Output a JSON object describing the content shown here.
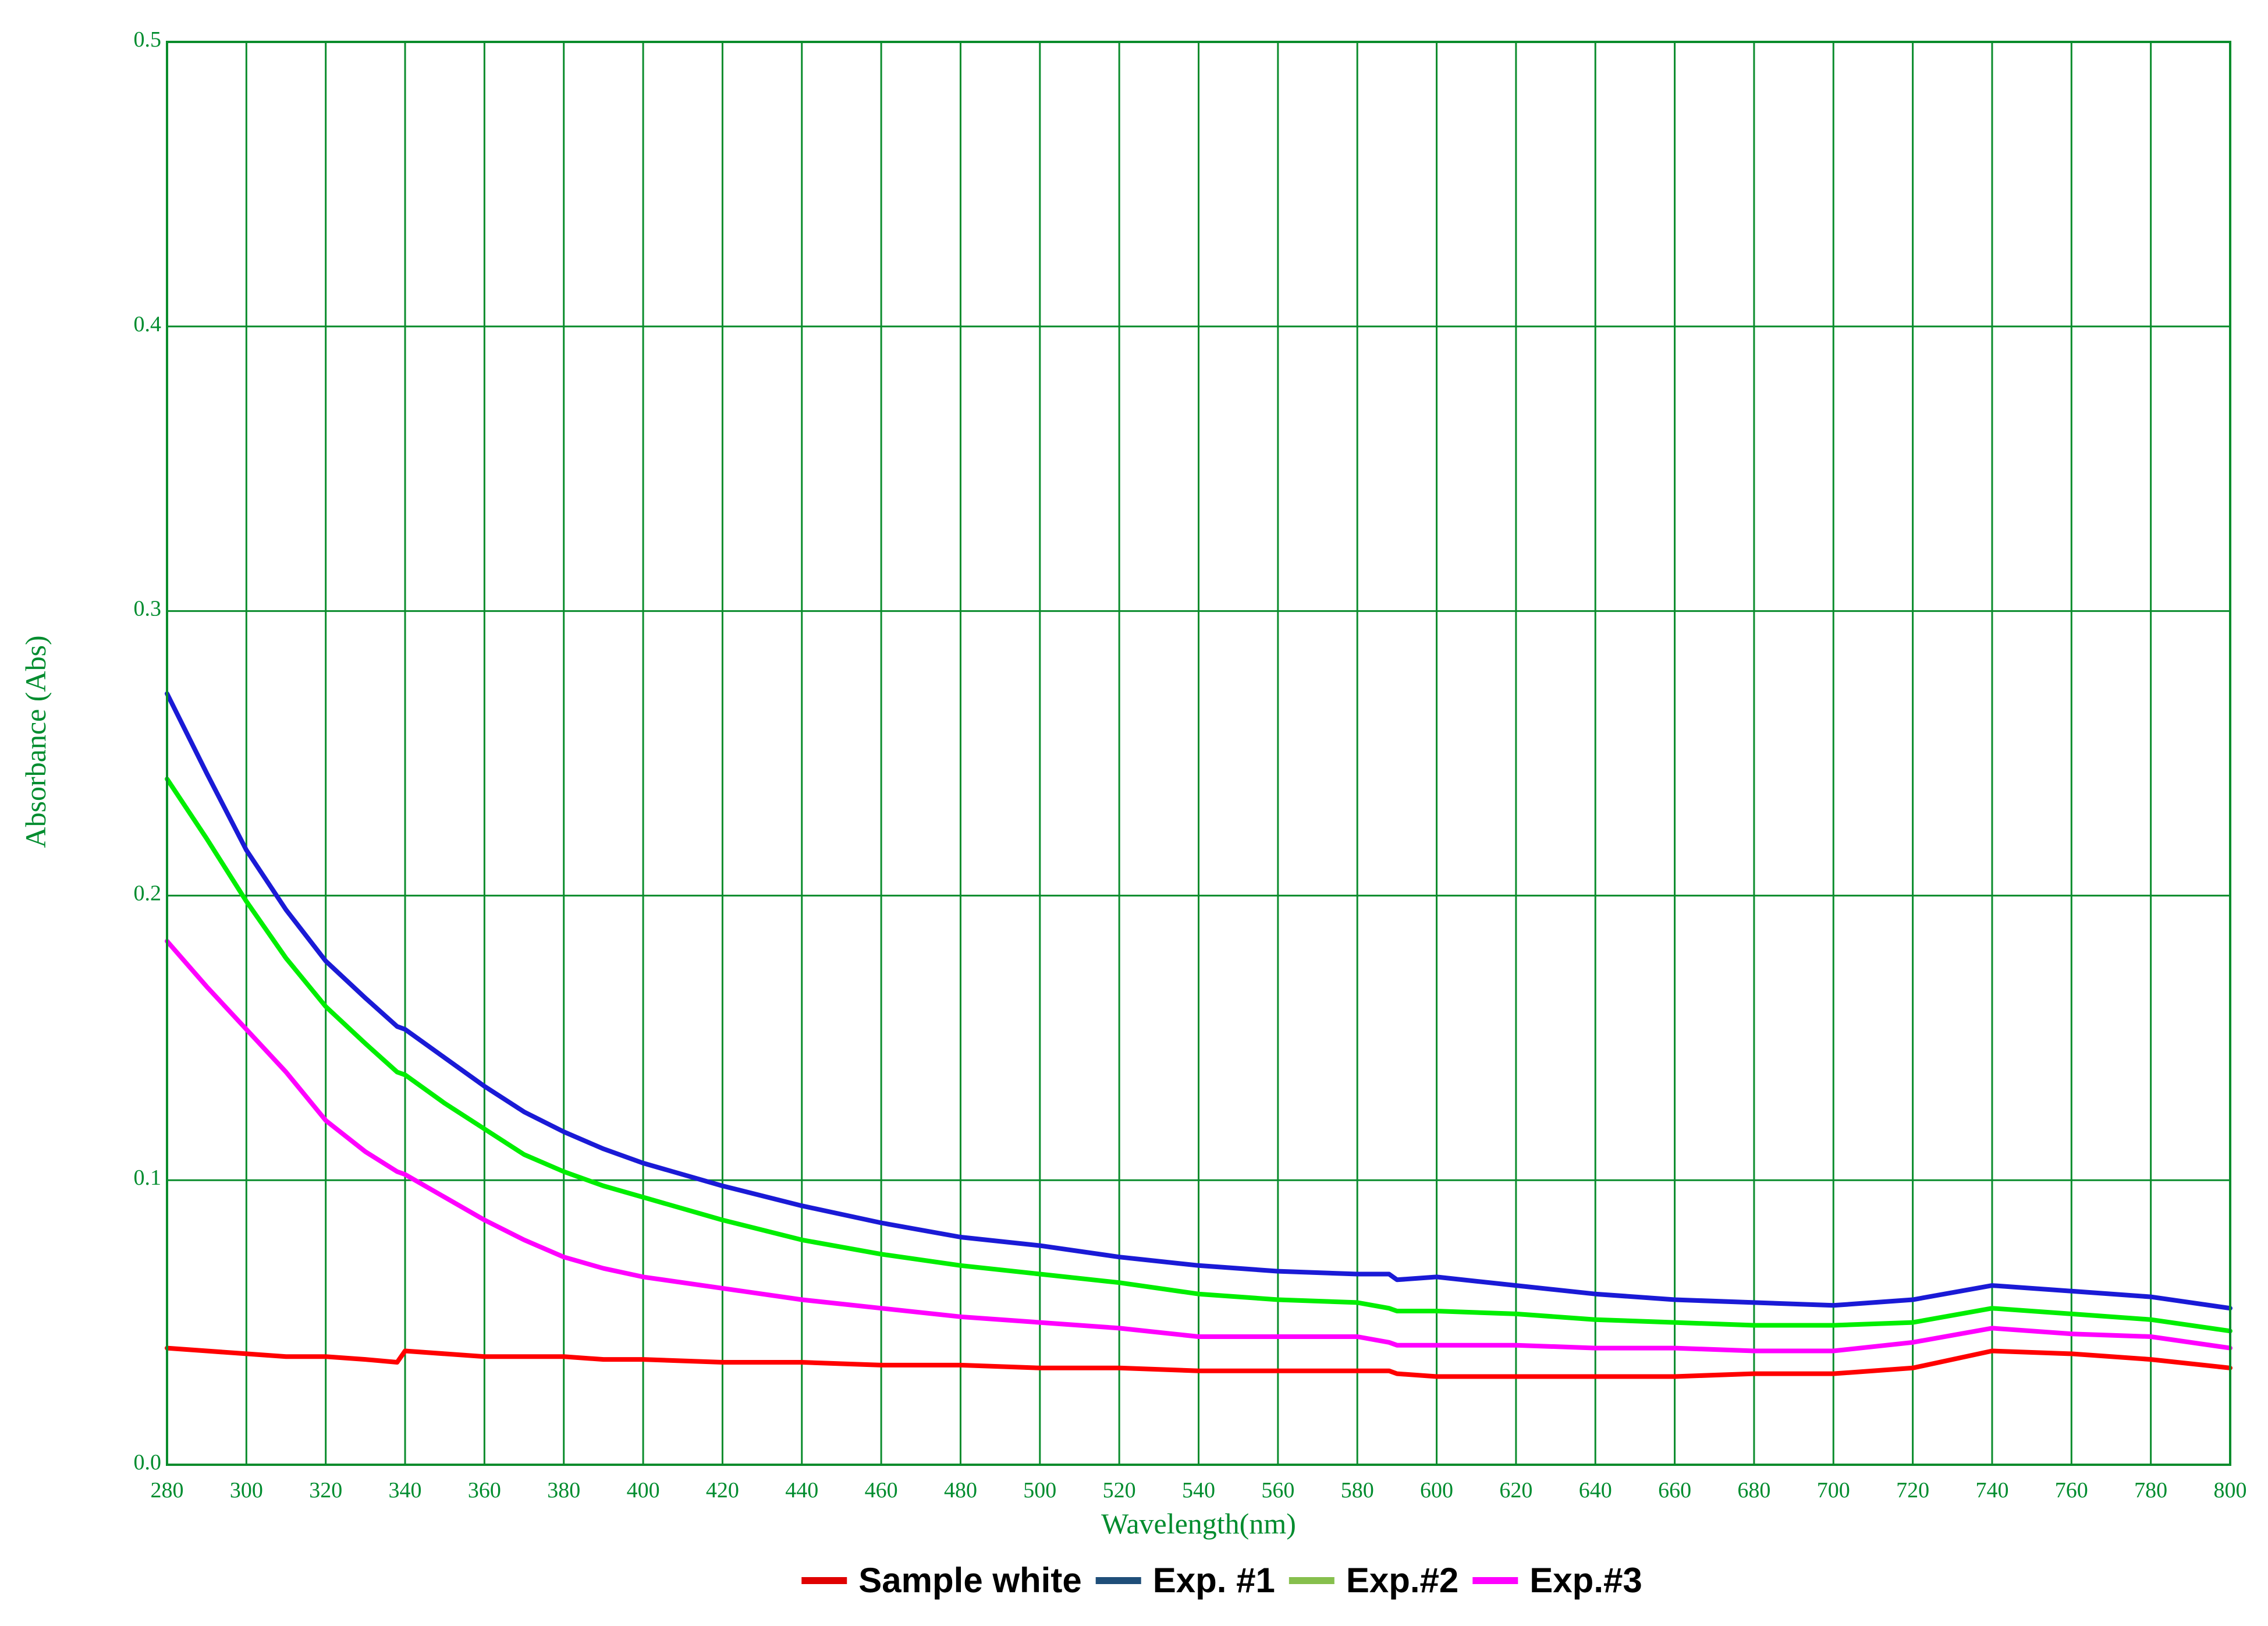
{
  "chart_data": {
    "type": "line",
    "xlabel": "Wavelength(nm)",
    "ylabel": "Absorbance (Abs)",
    "xlim": [
      280,
      800
    ],
    "ylim": [
      0.0,
      0.5
    ],
    "x_ticks": [
      280,
      300,
      320,
      340,
      360,
      380,
      400,
      420,
      440,
      460,
      480,
      500,
      520,
      540,
      560,
      580,
      600,
      620,
      640,
      660,
      680,
      700,
      720,
      740,
      760,
      780,
      800
    ],
    "x_tick_labels": [
      "280",
      "300",
      "320",
      "340",
      "360",
      "380",
      "400",
      "420",
      "440",
      "460",
      "480",
      "500",
      "520",
      "540",
      "560",
      "580",
      "600",
      "620",
      "640",
      "660",
      "680",
      "700",
      "720",
      "740",
      "760",
      "780",
      "800"
    ],
    "y_ticks": [
      0.0,
      0.1,
      0.2,
      0.3,
      0.4,
      0.5
    ],
    "y_tick_labels": [
      "0.0",
      "0.1",
      "0.2",
      "0.3",
      "0.4",
      "0.5"
    ],
    "grid": true,
    "grid_color": "#0a8c2c",
    "axis_color": "#0a8c2c",
    "legend_position": "bottom-center",
    "x": [
      280,
      290,
      300,
      310,
      320,
      330,
      338,
      340,
      350,
      360,
      370,
      380,
      390,
      400,
      420,
      440,
      460,
      480,
      500,
      520,
      540,
      560,
      580,
      588,
      590,
      600,
      620,
      640,
      660,
      680,
      700,
      720,
      740,
      760,
      780,
      800
    ],
    "series": [
      {
        "name": "Sample white",
        "line_color": "#ff0000",
        "legend_color": "#e00000",
        "values": [
          0.041,
          0.04,
          0.039,
          0.038,
          0.038,
          0.037,
          0.036,
          0.04,
          0.039,
          0.038,
          0.038,
          0.038,
          0.037,
          0.037,
          0.036,
          0.036,
          0.035,
          0.035,
          0.034,
          0.034,
          0.033,
          0.033,
          0.033,
          0.033,
          0.032,
          0.031,
          0.031,
          0.031,
          0.031,
          0.032,
          0.032,
          0.034,
          0.04,
          0.039,
          0.037,
          0.034
        ]
      },
      {
        "name": "Exp. #1",
        "line_color": "#1a1ad6",
        "legend_color": "#1f4e79",
        "values": [
          0.271,
          0.243,
          0.216,
          0.195,
          0.177,
          0.164,
          0.154,
          0.153,
          0.143,
          0.133,
          0.124,
          0.117,
          0.111,
          0.106,
          0.098,
          0.091,
          0.085,
          0.08,
          0.077,
          0.073,
          0.07,
          0.068,
          0.067,
          0.067,
          0.065,
          0.066,
          0.063,
          0.06,
          0.058,
          0.057,
          0.056,
          0.058,
          0.063,
          0.061,
          0.059,
          0.055
        ]
      },
      {
        "name": "Exp.#2",
        "line_color": "#00ee00",
        "legend_color": "#86bf4d",
        "values": [
          0.241,
          0.22,
          0.198,
          0.178,
          0.161,
          0.148,
          0.138,
          0.137,
          0.127,
          0.118,
          0.109,
          0.103,
          0.098,
          0.094,
          0.086,
          0.079,
          0.074,
          0.07,
          0.067,
          0.064,
          0.06,
          0.058,
          0.057,
          0.055,
          0.054,
          0.054,
          0.053,
          0.051,
          0.05,
          0.049,
          0.049,
          0.05,
          0.055,
          0.053,
          0.051,
          0.047
        ]
      },
      {
        "name": "Exp.#3",
        "line_color": "#ff00ff",
        "legend_color": "#ff00ff",
        "values": [
          0.184,
          0.168,
          0.153,
          0.138,
          0.121,
          0.11,
          0.103,
          0.102,
          0.094,
          0.086,
          0.079,
          0.073,
          0.069,
          0.066,
          0.062,
          0.058,
          0.055,
          0.052,
          0.05,
          0.048,
          0.045,
          0.045,
          0.045,
          0.043,
          0.042,
          0.042,
          0.042,
          0.041,
          0.041,
          0.04,
          0.04,
          0.043,
          0.048,
          0.046,
          0.045,
          0.041
        ]
      }
    ]
  }
}
